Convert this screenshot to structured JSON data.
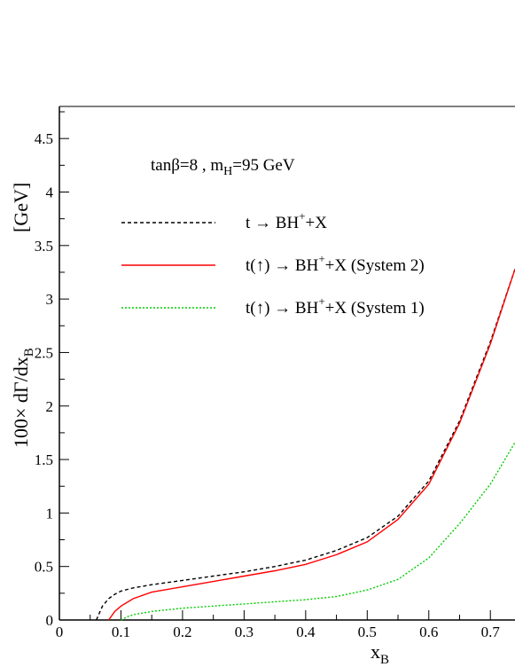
{
  "chart_data": {
    "type": "line",
    "title": "",
    "xlabel": "x",
    "xlabel_sub": "B",
    "ylabel_parts": [
      "100",
      "×",
      " dΓ/dx",
      "B"
    ],
    "yunit": "[GeV]",
    "xlim": [
      0,
      0.74
    ],
    "ylim": [
      0,
      4.8
    ],
    "grid": false,
    "x_ticks": [
      {
        "v": 0,
        "label": "0"
      },
      {
        "v": 0.1,
        "label": "0.1"
      },
      {
        "v": 0.2,
        "label": "0.2"
      },
      {
        "v": 0.3,
        "label": "0.3"
      },
      {
        "v": 0.4,
        "label": "0.4"
      },
      {
        "v": 0.5,
        "label": "0.5"
      },
      {
        "v": 0.6,
        "label": "0.6"
      },
      {
        "v": 0.7,
        "label": "0.7"
      }
    ],
    "y_ticks": [
      {
        "v": 0,
        "label": "0"
      },
      {
        "v": 0.5,
        "label": "0.5"
      },
      {
        "v": 1,
        "label": "1"
      },
      {
        "v": 1.5,
        "label": "1.5"
      },
      {
        "v": 2,
        "label": "2"
      },
      {
        "v": 2.5,
        "label": "2.5"
      },
      {
        "v": 3,
        "label": "3"
      },
      {
        "v": 3.5,
        "label": "3.5"
      },
      {
        "v": 4,
        "label": "4"
      },
      {
        "v": 4.5,
        "label": "4.5"
      }
    ],
    "annotation": {
      "pre": "tanβ=8 , m",
      "sub": "H",
      "post": "=95 GeV"
    },
    "legend_placement": "top-left",
    "series": [
      {
        "name_parts": [
          "t → BH",
          "+",
          "+X"
        ],
        "color": "#000000",
        "dash": "4,3",
        "x": [
          0.06,
          0.07,
          0.08,
          0.09,
          0.1,
          0.12,
          0.15,
          0.2,
          0.25,
          0.3,
          0.35,
          0.4,
          0.45,
          0.5,
          0.55,
          0.6,
          0.65,
          0.7,
          0.74
        ],
        "y": [
          0.0,
          0.13,
          0.2,
          0.24,
          0.27,
          0.3,
          0.33,
          0.37,
          0.41,
          0.45,
          0.5,
          0.56,
          0.65,
          0.77,
          0.97,
          1.3,
          1.86,
          2.6,
          3.28
        ]
      },
      {
        "name_parts": [
          "t(↑) → BH",
          "+",
          "+X (System 2)"
        ],
        "color": "#ff0000",
        "dash": "",
        "x": [
          0.08,
          0.09,
          0.1,
          0.12,
          0.15,
          0.2,
          0.25,
          0.3,
          0.35,
          0.4,
          0.45,
          0.5,
          0.55,
          0.6,
          0.65,
          0.7,
          0.74
        ],
        "y": [
          0.0,
          0.08,
          0.13,
          0.2,
          0.26,
          0.31,
          0.36,
          0.41,
          0.46,
          0.52,
          0.61,
          0.73,
          0.94,
          1.27,
          1.84,
          2.58,
          3.28
        ]
      },
      {
        "name_parts": [
          "t(↑) → BH",
          "+",
          "+X (System 1)"
        ],
        "color": "#00cc00",
        "dash": "2,2",
        "x": [
          0.1,
          0.11,
          0.12,
          0.15,
          0.2,
          0.25,
          0.3,
          0.35,
          0.4,
          0.45,
          0.5,
          0.55,
          0.6,
          0.65,
          0.7,
          0.74
        ],
        "y": [
          0.0,
          0.03,
          0.05,
          0.08,
          0.11,
          0.13,
          0.15,
          0.17,
          0.19,
          0.22,
          0.28,
          0.38,
          0.58,
          0.9,
          1.27,
          1.66
        ]
      }
    ]
  }
}
